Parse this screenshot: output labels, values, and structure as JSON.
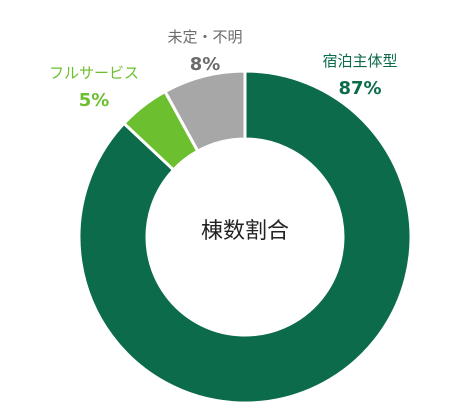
{
  "center_label": "棟数割合",
  "chart_data": {
    "type": "pie",
    "donut": true,
    "title": "",
    "center_label": "棟数割合",
    "unit": "%",
    "slices": [
      {
        "name": "宿泊主体型",
        "value": 87,
        "label": "87%",
        "color": "#0c6b4b"
      },
      {
        "name": "フルサービス",
        "value": 5,
        "label": "5%",
        "color": "#6cbf2e"
      },
      {
        "name": "未定・不明",
        "value": 8,
        "label": "8%",
        "color": "#a7a7a7"
      }
    ],
    "label_colors": {
      "宿泊主体型": "#0c6b4b",
      "フルサービス": "#6cbf2e",
      "未定・不明": "#6b6b6b"
    },
    "start_angle": "top",
    "direction": "clockwise"
  }
}
